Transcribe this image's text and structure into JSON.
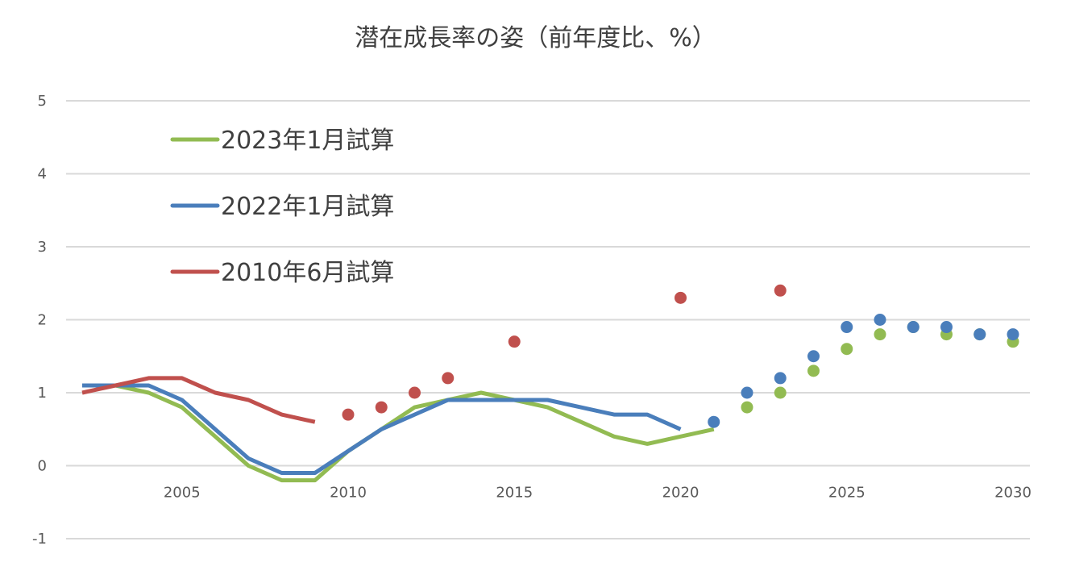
{
  "chart_data": {
    "type": "line",
    "title": "潜在成長率の姿（前年度比、%）",
    "xlabel": "",
    "ylabel": "",
    "xlim": [
      2002,
      2030
    ],
    "ylim": [
      -1,
      5
    ],
    "x_ticks": [
      2005,
      2010,
      2015,
      2020,
      2025,
      2030
    ],
    "y_ticks": [
      5,
      4,
      3,
      2,
      1,
      0,
      -1
    ],
    "grid": true,
    "legend_position": "top-left",
    "series": [
      {
        "name": "2023年1月試算",
        "color": "#92BB52",
        "line": [
          [
            2002,
            1.1
          ],
          [
            2003,
            1.1
          ],
          [
            2004,
            1.0
          ],
          [
            2005,
            0.8
          ],
          [
            2006,
            0.4
          ],
          [
            2007,
            0.0
          ],
          [
            2008,
            -0.2
          ],
          [
            2009,
            -0.2
          ],
          [
            2010,
            0.2
          ],
          [
            2011,
            0.5
          ],
          [
            2012,
            0.8
          ],
          [
            2013,
            0.9
          ],
          [
            2014,
            1.0
          ],
          [
            2015,
            0.9
          ],
          [
            2016,
            0.8
          ],
          [
            2017,
            0.6
          ],
          [
            2018,
            0.4
          ],
          [
            2019,
            0.3
          ],
          [
            2020,
            0.4
          ],
          [
            2021,
            0.5
          ]
        ],
        "points": [
          [
            2022,
            0.8
          ],
          [
            2023,
            1.0
          ],
          [
            2024,
            1.3
          ],
          [
            2025,
            1.6
          ],
          [
            2026,
            1.8
          ],
          [
            2027,
            1.9
          ],
          [
            2028,
            1.8
          ],
          [
            2029,
            1.8
          ],
          [
            2030,
            1.7
          ]
        ]
      },
      {
        "name": "2022年1月試算",
        "color": "#4A7EBB",
        "line": [
          [
            2002,
            1.1
          ],
          [
            2003,
            1.1
          ],
          [
            2004,
            1.1
          ],
          [
            2005,
            0.9
          ],
          [
            2006,
            0.5
          ],
          [
            2007,
            0.1
          ],
          [
            2008,
            -0.1
          ],
          [
            2009,
            -0.1
          ],
          [
            2010,
            0.2
          ],
          [
            2011,
            0.5
          ],
          [
            2012,
            0.7
          ],
          [
            2013,
            0.9
          ],
          [
            2014,
            0.9
          ],
          [
            2015,
            0.9
          ],
          [
            2016,
            0.9
          ],
          [
            2017,
            0.8
          ],
          [
            2018,
            0.7
          ],
          [
            2019,
            0.7
          ],
          [
            2020,
            0.5
          ]
        ],
        "points": [
          [
            2021,
            0.6
          ],
          [
            2022,
            1.0
          ],
          [
            2023,
            1.2
          ],
          [
            2024,
            1.5
          ],
          [
            2025,
            1.9
          ],
          [
            2026,
            2.0
          ],
          [
            2027,
            1.9
          ],
          [
            2028,
            1.9
          ],
          [
            2029,
            1.8
          ],
          [
            2030,
            1.8
          ]
        ]
      },
      {
        "name": "2010年6月試算",
        "color": "#C0504D",
        "line": [
          [
            2002,
            1.0
          ],
          [
            2003,
            1.1
          ],
          [
            2004,
            1.2
          ],
          [
            2005,
            1.2
          ],
          [
            2006,
            1.0
          ],
          [
            2007,
            0.9
          ],
          [
            2008,
            0.7
          ],
          [
            2009,
            0.6
          ]
        ],
        "points": [
          [
            2010,
            0.7
          ],
          [
            2011,
            0.8
          ],
          [
            2012,
            1.0
          ],
          [
            2013,
            1.2
          ],
          [
            2015,
            1.7
          ],
          [
            2020,
            2.3
          ],
          [
            2023,
            2.4
          ]
        ]
      }
    ]
  }
}
